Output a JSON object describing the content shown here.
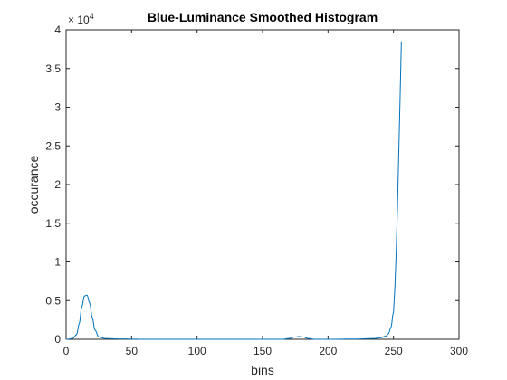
{
  "chart_data": {
    "type": "line",
    "title": "Blue-Luminance Smoothed Histogram",
    "xlabel": "bins",
    "ylabel": "occurance",
    "xlim": [
      0,
      300
    ],
    "ylim": [
      0,
      40000
    ],
    "y_exponent_label": {
      "base": "× 10",
      "power": "4"
    },
    "x_ticks": [
      "0",
      "50",
      "100",
      "150",
      "200",
      "250",
      "300"
    ],
    "y_ticks": [
      "0",
      "0.5",
      "1",
      "1.5",
      "2",
      "2.5",
      "3",
      "3.5",
      "4"
    ],
    "grid": false,
    "series": [
      {
        "color": "#0072BD",
        "x": [
          0,
          5,
          8,
          10,
          12,
          14,
          16,
          18,
          20,
          22,
          25,
          30,
          40,
          60,
          100,
          150,
          165,
          170,
          175,
          178,
          181,
          185,
          190,
          200,
          220,
          235,
          240,
          244,
          246,
          248,
          250,
          251,
          252,
          253,
          254,
          255,
          256
        ],
        "y": [
          0,
          100,
          600,
          2000,
          4200,
          5600,
          5700,
          4700,
          2800,
          1200,
          300,
          100,
          50,
          0,
          0,
          0,
          0,
          100,
          300,
          350,
          300,
          100,
          0,
          0,
          30,
          100,
          200,
          400,
          700,
          1500,
          3500,
          6500,
          11000,
          17000,
          24000,
          31000,
          38500
        ]
      }
    ]
  }
}
